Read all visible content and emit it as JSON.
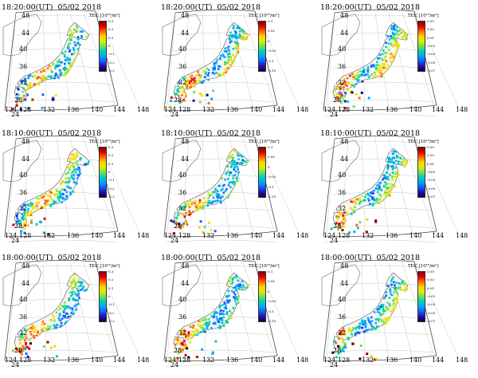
{
  "colorbar_title": "TEC [10¹⁶/m²]",
  "colors": {
    "scale": [
      "#8a0000",
      "#e00000",
      "#ff6a00",
      "#ffd200",
      "#d8f000",
      "#6ee05a",
      "#00d0b0",
      "#00a8ff",
      "#1060ff",
      "#2010b0",
      "#100040"
    ]
  },
  "lat_labels": [
    "48",
    "44",
    "40",
    "36",
    "32",
    "28",
    "24"
  ],
  "lon_labels": [
    "124",
    "128",
    "132",
    "136",
    "140",
    "144",
    "148"
  ],
  "panels": [
    {
      "id": "r1c1",
      "time": "18:20:00(UT)",
      "date": "05/02 2018",
      "ticks": [
        "0.3",
        "0.2",
        "0.1",
        "0",
        "-0.1",
        "-0.2",
        "-0.3"
      ]
    },
    {
      "id": "r1c2",
      "time": "18:20:00(UT)",
      "date": "05/02 2018",
      "ticks": [
        "0.1",
        "0.05",
        "0",
        "-0.05",
        "-0.1",
        "-0.15"
      ]
    },
    {
      "id": "r1c3",
      "time": "18:20:00(UT)",
      "date": "05/02 2018",
      "ticks": [
        "0.05",
        "0.03",
        "0.01",
        "-0.01",
        "-0.03",
        "-0.05",
        "-0.07"
      ]
    },
    {
      "id": "r2c1",
      "time": "18:10:00(UT)",
      "date": "05/02 2018",
      "ticks": [
        "0.3",
        "0.2",
        "0.1",
        "0",
        "-0.1",
        "-0.2",
        "-0.3"
      ]
    },
    {
      "id": "r2c2",
      "time": "18:10:00(UT)",
      "date": "05/02 2018",
      "ticks": [
        "0.1",
        "0.05",
        "0",
        "-0.05",
        "-0.1",
        "-0.15"
      ]
    },
    {
      "id": "r2c3",
      "time": "18:10:00(UT)",
      "date": "05/02 2018",
      "ticks": [
        "0.05",
        "0.03",
        "0.01",
        "-0.01",
        "-0.03",
        "-0.05",
        "-0.07"
      ]
    },
    {
      "id": "r3c1",
      "time": "18:00:00(UT)",
      "date": "05/02 2018",
      "ticks": [
        "0.3",
        "0.2",
        "0.1",
        "0",
        "-0.1",
        "-0.2",
        "-0.3"
      ]
    },
    {
      "id": "r3c2",
      "time": "18:00:00(UT)",
      "date": "05/02 2018",
      "ticks": [
        "0.1",
        "0.05",
        "0",
        "-0.05",
        "-0.1",
        "-0.15"
      ]
    },
    {
      "id": "r3c3",
      "time": "18:00:00(UT)",
      "date": "05/02 2018",
      "ticks": [
        "0.05",
        "0.03",
        "0.01",
        "-0.01",
        "-0.03",
        "-0.05",
        "-0.07"
      ]
    }
  ]
}
